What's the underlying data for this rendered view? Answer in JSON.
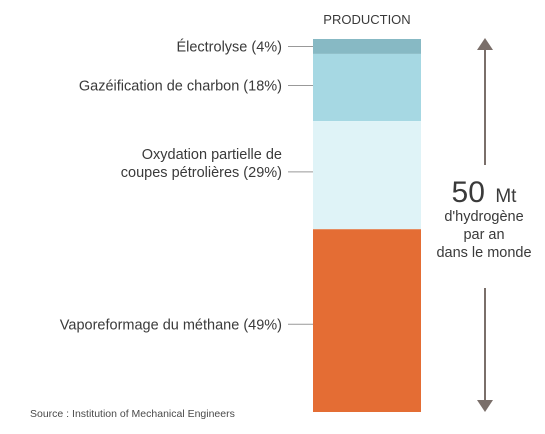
{
  "chart_data": {
    "type": "bar",
    "stacked": true,
    "header": "PRODUCTION",
    "categories": [
      "Électrolyse (4%)",
      "Gazéification de charbon (18%)",
      "Oxydation partielle de coupes pétrolières (29%)",
      "Vaporeformage du méthane (49%)"
    ],
    "label_lines": [
      [
        "Électrolyse (4%)"
      ],
      [
        "Gazéification de charbon (18%)"
      ],
      [
        "Oxydation partielle de",
        "coupes pétrolières (29%)"
      ],
      [
        "Vaporeformage du méthane (49%)"
      ]
    ],
    "values": [
      4,
      18,
      29,
      49
    ],
    "unit": "%",
    "colors": [
      "#87b9c4",
      "#a6d8e3",
      "#dff3f7",
      "#e46d34"
    ],
    "total": {
      "value": "50",
      "unit": "Mt",
      "caption_lines": [
        "d'hydrogène",
        "par an",
        "dans le monde"
      ]
    },
    "source": "Source : Institution of Mechanical Engineers",
    "grid": false,
    "legend": "none"
  },
  "colors": {
    "text": "#3a3a3a",
    "arrow": "#7a6f6a",
    "leader": "#999999"
  }
}
